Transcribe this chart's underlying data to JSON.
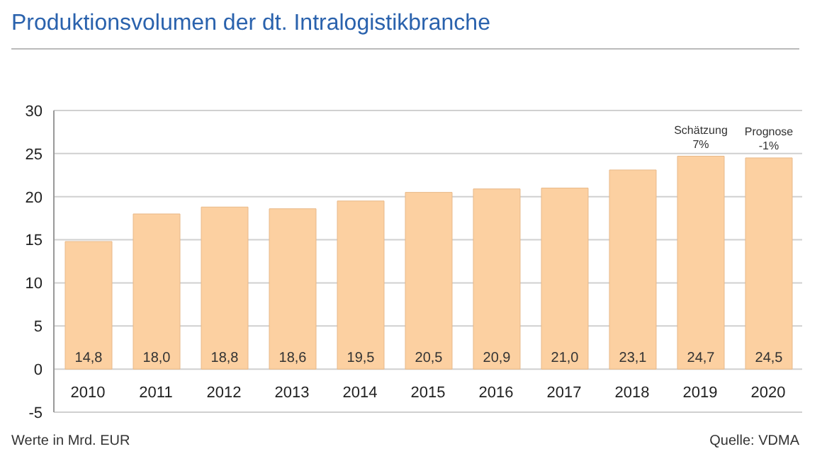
{
  "chart_data": {
    "type": "bar",
    "title": "Produktionsvolumen der dt. Intralogistikbranche",
    "categories": [
      "2010",
      "2011",
      "2012",
      "2013",
      "2014",
      "2015",
      "2016",
      "2017",
      "2018",
      "2019",
      "2020"
    ],
    "values": [
      14.8,
      18.0,
      18.8,
      18.6,
      19.5,
      20.5,
      20.9,
      21.0,
      23.1,
      24.7,
      24.5
    ],
    "value_labels": [
      "14,8",
      "18,0",
      "18,8",
      "18,6",
      "19,5",
      "20,5",
      "20,9",
      "21,0",
      "23,1",
      "24,7",
      "24,5"
    ],
    "color": "#fcd0a1",
    "ylim": [
      -5,
      30
    ],
    "yticks": [
      -5,
      0,
      5,
      10,
      15,
      20,
      25,
      30
    ],
    "grid": "y",
    "annotations": [
      {
        "text": "Schätzung\n7%",
        "x": "2019",
        "y": 24.7
      },
      {
        "text": "Prognose\n-1%",
        "x": "2020",
        "y": 24.5
      },
      "Werte in Mrd. EUR",
      "Quelle: VDMA"
    ]
  }
}
